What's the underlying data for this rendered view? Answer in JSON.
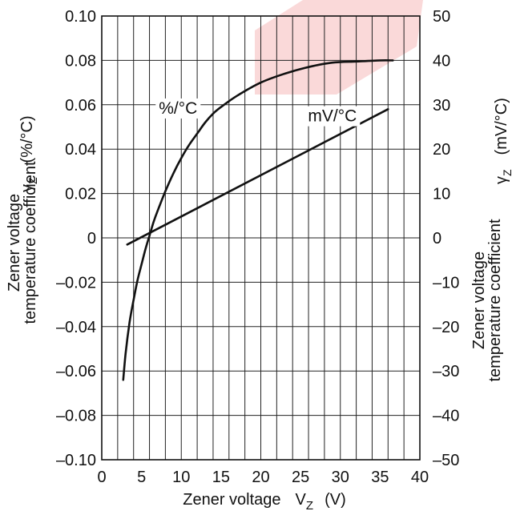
{
  "chart_data": {
    "type": "line",
    "title": "",
    "xlabel": {
      "prefix": "Zener voltage",
      "symbol": "V",
      "subscript": "Z",
      "unit": "(V)"
    },
    "ylabel_left": {
      "line1": "Zener voltage",
      "line2": "temperature coefficient",
      "symbol": "γ",
      "subscript": "Z",
      "unit": "(%/°C)"
    },
    "ylabel_right": {
      "line1": "Zener voltage",
      "line2": "temperature coefficient",
      "symbol": "γ",
      "subscript": "Z",
      "unit": "(mV/°C)"
    },
    "xlim": [
      0,
      40
    ],
    "ylim_left": [
      -0.1,
      0.1
    ],
    "ylim_right": [
      -50,
      50
    ],
    "x_ticks": [
      0,
      5,
      10,
      15,
      20,
      25,
      30,
      35,
      40
    ],
    "x_tick_labels": [
      "0",
      "5",
      "10",
      "15",
      "20",
      "25",
      "30",
      "35",
      "40"
    ],
    "y_left_ticks": [
      -0.1,
      -0.08,
      -0.06,
      -0.04,
      -0.02,
      0,
      0.02,
      0.04,
      0.06,
      0.08,
      0.1
    ],
    "y_left_tick_labels": [
      "–0.10",
      "–0.08",
      "–0.06",
      "–0.04",
      "–0.02",
      "0",
      "0.02",
      "0.04",
      "0.06",
      "0.08",
      "0.10"
    ],
    "y_right_ticks": [
      -50,
      -40,
      -30,
      -20,
      -10,
      0,
      10,
      20,
      30,
      40,
      50
    ],
    "y_right_tick_labels": [
      "–50",
      "–40",
      "–30",
      "–20",
      "–10",
      "0",
      "10",
      "20",
      "30",
      "40",
      "50"
    ],
    "grid": {
      "x_step": 2,
      "y_left_step": 0.02
    },
    "series": [
      {
        "name": "%/°C",
        "axis": "left",
        "color": "#111111",
        "x": [
          2.7,
          3.0,
          3.5,
          4.0,
          4.5,
          5.0,
          5.5,
          6.0,
          6.5,
          7.0,
          8.0,
          9.0,
          10.0,
          11.0,
          12.0,
          13.0,
          14.0,
          15.0,
          17.0,
          20.0,
          23.0,
          26.0,
          29.0,
          32.0,
          35.0,
          36.6
        ],
        "values": [
          -0.064,
          -0.052,
          -0.038,
          -0.028,
          -0.019,
          -0.012,
          -0.005,
          0.001,
          0.007,
          0.012,
          0.021,
          0.029,
          0.036,
          0.042,
          0.047,
          0.052,
          0.056,
          0.059,
          0.064,
          0.07,
          0.074,
          0.077,
          0.079,
          0.0795,
          0.08,
          0.08
        ]
      },
      {
        "name": "mV/°C",
        "axis": "right",
        "color": "#111111",
        "x": [
          3.2,
          36.0
        ],
        "values": [
          -1.5,
          29.0
        ]
      }
    ],
    "annotations": [
      {
        "text": "%/°C",
        "series": "%/°C",
        "x": 9.6,
        "y": 0.0585
      },
      {
        "text": "mV/°C",
        "series": "mV/°C",
        "x": 29.0,
        "y": 27.5
      }
    ]
  }
}
